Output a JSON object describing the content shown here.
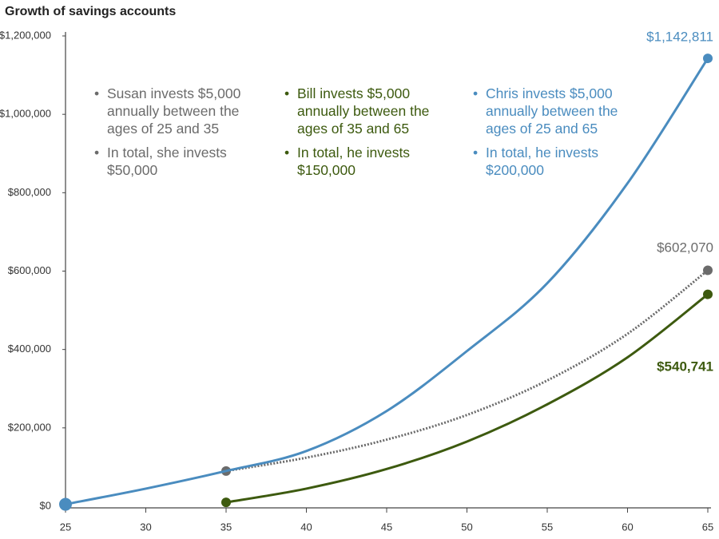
{
  "chart_data": {
    "type": "line",
    "title": "Growth of savings accounts",
    "x": [
      25,
      30,
      35,
      40,
      45,
      50,
      55,
      60,
      65
    ],
    "series": [
      {
        "name": "Susan",
        "color": "#6b6b6b",
        "dash": true,
        "values": [
          null,
          null,
          90000,
          124000,
          170000,
          233000,
          321000,
          440000,
          602070
        ],
        "value_labels": [
          null,
          null,
          null,
          null,
          null,
          null,
          null,
          null,
          "$602,070"
        ],
        "note": [
          "Susan invests $5,000 annually between the ages of 25 and 35",
          "In total, she invests $50,000"
        ]
      },
      {
        "name": "Bill",
        "color": "#3d5a0f",
        "dash": false,
        "values": [
          null,
          null,
          10000,
          45000,
          95000,
          165000,
          260000,
          380000,
          540741
        ],
        "value_labels": [
          null,
          null,
          null,
          null,
          null,
          null,
          null,
          null,
          "$540,741"
        ],
        "note": [
          "Bill invests $5,000 annually between the ages of 35 and 65",
          "In total, he invests $150,000"
        ]
      },
      {
        "name": "Chris",
        "color": "#4a8cbf",
        "dash": false,
        "values": [
          5000,
          45000,
          90000,
          141000,
          243000,
          396000,
          569000,
          824000,
          1142811
        ],
        "value_labels": [
          null,
          null,
          null,
          null,
          null,
          null,
          null,
          null,
          "$1,142,811"
        ],
        "note": [
          "Chris invests $5,000 annually between the ages of 25 and 65",
          "In total, he invests $200,000"
        ]
      }
    ],
    "xlim": [
      25,
      65
    ],
    "xticks": [
      25,
      30,
      35,
      40,
      45,
      50,
      55,
      60,
      65
    ],
    "ylim": [
      0,
      1200000
    ],
    "yticks": [
      {
        "value": 0,
        "label": "$0"
      },
      {
        "value": 200000,
        "label": "$200,000"
      },
      {
        "value": 400000,
        "label": "$400,000"
      },
      {
        "value": 600000,
        "label": "$600,000"
      },
      {
        "value": 800000,
        "label": "$800,000"
      },
      {
        "value": 1000000,
        "label": "$1,000,000"
      },
      {
        "value": 1200000,
        "label": "$1,200,000"
      }
    ],
    "grid": false
  }
}
